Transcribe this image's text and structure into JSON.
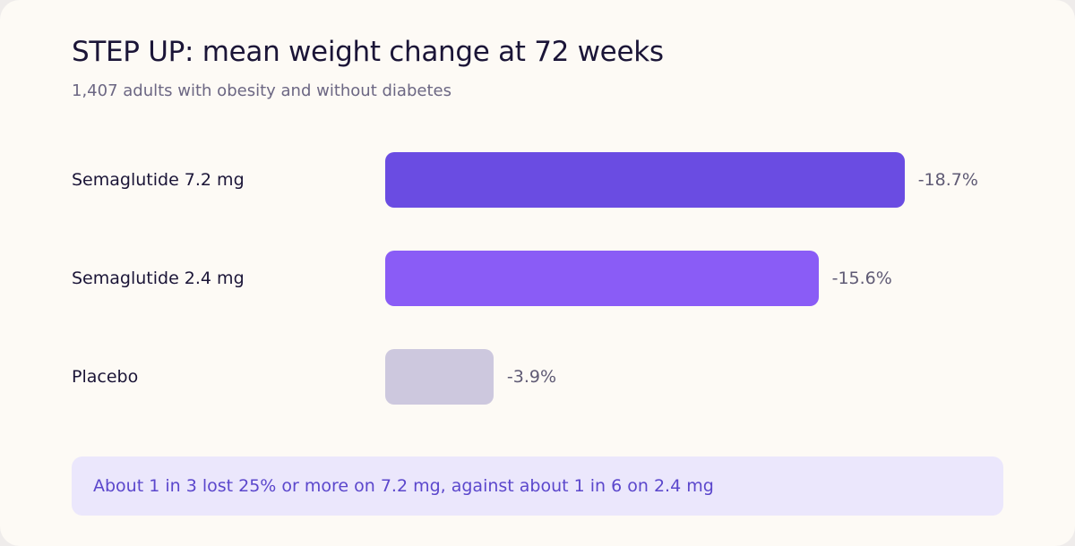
{
  "chart_data": {
    "type": "bar",
    "orientation": "horizontal",
    "title": "STEP UP: mean weight change at 72 weeks",
    "subtitle": "1,407 adults with obesity and without diabetes",
    "categories": [
      "Semaglutide 7.2 mg",
      "Semaglutide 2.4 mg",
      "Placebo"
    ],
    "values": [
      -18.7,
      -15.6,
      -3.9
    ],
    "value_labels": [
      "-18.7%",
      "-15.6%",
      "-3.9%"
    ],
    "unit": "%",
    "colors": [
      "#6a4ce2",
      "#8a5cf6",
      "#cdc8de"
    ],
    "grid": false,
    "legend": "none",
    "annotation": "About 1 in 3 lost 25% or more on 7.2 mg, against about 1 in 6 on 2.4 mg"
  }
}
